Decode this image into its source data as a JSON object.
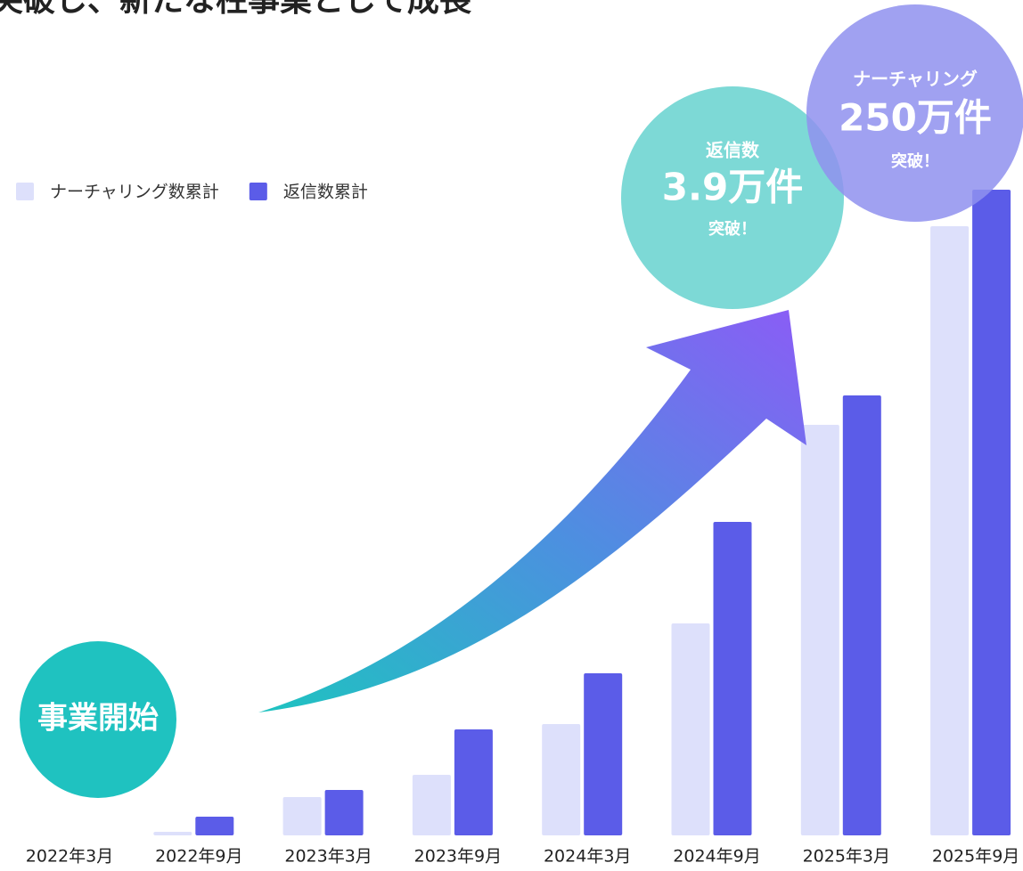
{
  "chart_data": {
    "type": "bar",
    "title": "突破し、新たな柱事業として成長",
    "categories": [
      "2022年3月",
      "2022年9月",
      "2023年3月",
      "2023年9月",
      "2024年3月",
      "2024年9月",
      "2025年3月",
      "2025年9月"
    ],
    "series": [
      {
        "name": "ナーチャリング数累計",
        "color": "#dde0fb",
        "values": [
          0,
          4,
          43,
          68,
          125,
          238,
          461,
          684
        ]
      },
      {
        "name": "返信数累計",
        "color": "#5b5ce8",
        "values": [
          0,
          21,
          51,
          119,
          182,
          352,
          494,
          725
        ]
      }
    ],
    "annotations": [
      "事業開始",
      "返信数",
      "3.9万件",
      "突破！",
      "ナーチャリング",
      "250万件",
      "突破！"
    ]
  }
}
